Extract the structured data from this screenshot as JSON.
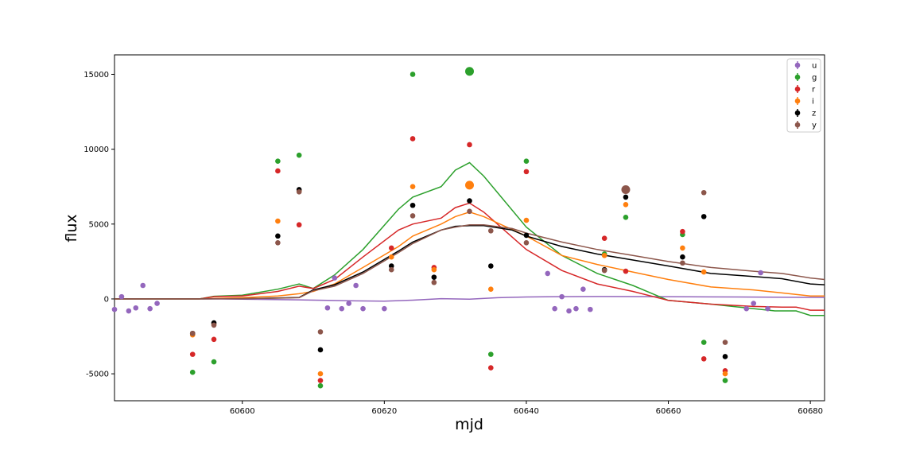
{
  "chart_data": {
    "type": "scatter",
    "title": "",
    "xlabel": "mjd",
    "ylabel": "flux",
    "xlim": [
      60582,
      60682
    ],
    "ylim": [
      -6800,
      16300
    ],
    "xticks": [
      60600,
      60620,
      60640,
      60660,
      60680
    ],
    "yticks": [
      -5000,
      0,
      5000,
      10000,
      15000
    ],
    "grid": false,
    "legend_position": "top-right",
    "series": [
      {
        "name": "u",
        "color": "#9467bd",
        "points": [
          [
            60582,
            -700
          ],
          [
            60583,
            150
          ],
          [
            60584,
            -800
          ],
          [
            60585,
            -600
          ],
          [
            60586,
            900
          ],
          [
            60587,
            -650
          ],
          [
            60588,
            -300
          ],
          [
            60612,
            -600
          ],
          [
            60613,
            1400
          ],
          [
            60614,
            -650
          ],
          [
            60615,
            -300
          ],
          [
            60616,
            900
          ],
          [
            60617,
            -650
          ],
          [
            60620,
            -650
          ],
          [
            60643,
            1700
          ],
          [
            60644,
            -650
          ],
          [
            60645,
            150
          ],
          [
            60646,
            -800
          ],
          [
            60647,
            -650
          ],
          [
            60648,
            650
          ],
          [
            60649,
            -700
          ],
          [
            60671,
            -650
          ],
          [
            60672,
            -300
          ],
          [
            60673,
            1750
          ],
          [
            60674,
            -650
          ]
        ],
        "big_points": [],
        "model": [
          [
            60582,
            0
          ],
          [
            60594,
            0
          ],
          [
            60600,
            -20
          ],
          [
            60608,
            -60
          ],
          [
            60612,
            -100
          ],
          [
            60616,
            -130
          ],
          [
            60620,
            -150
          ],
          [
            60624,
            -80
          ],
          [
            60628,
            20
          ],
          [
            60632,
            -20
          ],
          [
            60636,
            80
          ],
          [
            60640,
            130
          ],
          [
            60644,
            150
          ],
          [
            60650,
            160
          ],
          [
            60660,
            150
          ],
          [
            60670,
            130
          ],
          [
            60682,
            100
          ]
        ]
      },
      {
        "name": "g",
        "color": "#2ca02c",
        "points": [
          [
            60593,
            -4900
          ],
          [
            60596,
            -4200
          ],
          [
            60605,
            9200
          ],
          [
            60608,
            9600
          ],
          [
            60611,
            -5800
          ],
          [
            60624,
            15000
          ],
          [
            60635,
            -3700
          ],
          [
            60640,
            9200
          ],
          [
            60651,
            3000
          ],
          [
            60654,
            5450
          ],
          [
            60662,
            4300
          ],
          [
            60665,
            -2900
          ],
          [
            60668,
            -5450
          ]
        ],
        "big_points": [
          [
            60632,
            15200
          ]
        ],
        "model": [
          [
            60582,
            0
          ],
          [
            60594,
            0
          ],
          [
            60596,
            180
          ],
          [
            60600,
            250
          ],
          [
            60605,
            650
          ],
          [
            60608,
            1000
          ],
          [
            60610,
            700
          ],
          [
            60613,
            1600
          ],
          [
            60617,
            3300
          ],
          [
            60622,
            6000
          ],
          [
            60624,
            6800
          ],
          [
            60628,
            7500
          ],
          [
            60630,
            8600
          ],
          [
            60632,
            9100
          ],
          [
            60634,
            8200
          ],
          [
            60640,
            4800
          ],
          [
            60645,
            2900
          ],
          [
            60650,
            1700
          ],
          [
            60655,
            900
          ],
          [
            60660,
            -100
          ],
          [
            60666,
            -350
          ],
          [
            60675,
            -800
          ],
          [
            60678,
            -800
          ],
          [
            60680,
            -1100
          ],
          [
            60682,
            -1100
          ]
        ]
      },
      {
        "name": "r",
        "color": "#d62728",
        "points": [
          [
            60593,
            -3700
          ],
          [
            60596,
            -2700
          ],
          [
            60605,
            8550
          ],
          [
            60608,
            4950
          ],
          [
            60611,
            -5450
          ],
          [
            60621,
            3400
          ],
          [
            60624,
            10700
          ],
          [
            60627,
            2100
          ],
          [
            60632,
            10300
          ],
          [
            60635,
            -4600
          ],
          [
            60640,
            8500
          ],
          [
            60651,
            4050
          ],
          [
            60654,
            1850
          ],
          [
            60662,
            4500
          ],
          [
            60665,
            -4000
          ],
          [
            60668,
            -4800
          ]
        ],
        "big_points": [],
        "model": [
          [
            60582,
            0
          ],
          [
            60594,
            0
          ],
          [
            60596,
            150
          ],
          [
            60600,
            200
          ],
          [
            60605,
            500
          ],
          [
            60608,
            850
          ],
          [
            60610,
            700
          ],
          [
            60613,
            1300
          ],
          [
            60617,
            2800
          ],
          [
            60622,
            4600
          ],
          [
            60624,
            5000
          ],
          [
            60628,
            5400
          ],
          [
            60630,
            6100
          ],
          [
            60632,
            6400
          ],
          [
            60634,
            5800
          ],
          [
            60640,
            3300
          ],
          [
            60645,
            1900
          ],
          [
            60650,
            1000
          ],
          [
            60655,
            500
          ],
          [
            60660,
            -100
          ],
          [
            60666,
            -350
          ],
          [
            60672,
            -500
          ],
          [
            60676,
            -550
          ],
          [
            60678,
            -550
          ],
          [
            60680,
            -750
          ],
          [
            60682,
            -750
          ]
        ]
      },
      {
        "name": "i",
        "color": "#ff7f0e",
        "points": [
          [
            60593,
            -2400
          ],
          [
            60596,
            -1700
          ],
          [
            60605,
            5200
          ],
          [
            60608,
            7200
          ],
          [
            60611,
            -5000
          ],
          [
            60621,
            2800
          ],
          [
            60624,
            7500
          ],
          [
            60627,
            1950
          ],
          [
            60635,
            650
          ],
          [
            60640,
            5250
          ],
          [
            60651,
            2900
          ],
          [
            60654,
            6300
          ],
          [
            60662,
            3400
          ],
          [
            60665,
            1800
          ],
          [
            60668,
            -5000
          ]
        ],
        "big_points": [
          [
            60632,
            7600
          ]
        ],
        "model": [
          [
            60582,
            0
          ],
          [
            60594,
            0
          ],
          [
            60600,
            80
          ],
          [
            60605,
            200
          ],
          [
            60608,
            350
          ],
          [
            60610,
            500
          ],
          [
            60613,
            1000
          ],
          [
            60617,
            2100
          ],
          [
            60622,
            3500
          ],
          [
            60624,
            4200
          ],
          [
            60628,
            5000
          ],
          [
            60630,
            5500
          ],
          [
            60632,
            5800
          ],
          [
            60634,
            5500
          ],
          [
            60640,
            4200
          ],
          [
            60645,
            2900
          ],
          [
            60650,
            2300
          ],
          [
            60655,
            1800
          ],
          [
            60660,
            1300
          ],
          [
            60666,
            800
          ],
          [
            60672,
            600
          ],
          [
            60676,
            400
          ],
          [
            60680,
            200
          ],
          [
            60682,
            200
          ]
        ]
      },
      {
        "name": "z",
        "color": "#000000",
        "points": [
          [
            60593,
            -2300
          ],
          [
            60596,
            -1600
          ],
          [
            60605,
            4200
          ],
          [
            60608,
            7300
          ],
          [
            60611,
            -3400
          ],
          [
            60621,
            2200
          ],
          [
            60624,
            6250
          ],
          [
            60627,
            1450
          ],
          [
            60632,
            6550
          ],
          [
            60635,
            2200
          ],
          [
            60640,
            4250
          ],
          [
            60651,
            1950
          ],
          [
            60654,
            6800
          ],
          [
            60662,
            2800
          ],
          [
            60665,
            5500
          ],
          [
            60668,
            -3850
          ]
        ],
        "big_points": [],
        "model": [
          [
            60582,
            0
          ],
          [
            60594,
            0
          ],
          [
            60600,
            20
          ],
          [
            60605,
            60
          ],
          [
            60608,
            100
          ],
          [
            60610,
            600
          ],
          [
            60613,
            950
          ],
          [
            60617,
            1800
          ],
          [
            60622,
            3200
          ],
          [
            60624,
            3800
          ],
          [
            60628,
            4600
          ],
          [
            60630,
            4850
          ],
          [
            60632,
            4900
          ],
          [
            60634,
            4900
          ],
          [
            60638,
            4600
          ],
          [
            60640,
            4200
          ],
          [
            60645,
            3500
          ],
          [
            60650,
            3000
          ],
          [
            60655,
            2600
          ],
          [
            60660,
            2200
          ],
          [
            60666,
            1700
          ],
          [
            60672,
            1500
          ],
          [
            60676,
            1350
          ],
          [
            60680,
            1000
          ],
          [
            60682,
            950
          ]
        ]
      },
      {
        "name": "y",
        "color": "#8c564b",
        "points": [
          [
            60593,
            -2300
          ],
          [
            60596,
            -1750
          ],
          [
            60605,
            3750
          ],
          [
            60608,
            7150
          ],
          [
            60611,
            -2200
          ],
          [
            60621,
            1950
          ],
          [
            60624,
            5550
          ],
          [
            60627,
            1100
          ],
          [
            60632,
            5850
          ],
          [
            60635,
            4550
          ],
          [
            60640,
            3750
          ],
          [
            60651,
            1900
          ],
          [
            60662,
            2400
          ],
          [
            60665,
            7100
          ],
          [
            60668,
            -2900
          ]
        ],
        "big_points": [
          [
            60654,
            7300
          ]
        ],
        "model": [
          [
            60582,
            0
          ],
          [
            60594,
            0
          ],
          [
            60600,
            20
          ],
          [
            60605,
            50
          ],
          [
            60608,
            80
          ],
          [
            60610,
            550
          ],
          [
            60613,
            850
          ],
          [
            60617,
            1700
          ],
          [
            60622,
            3100
          ],
          [
            60624,
            3700
          ],
          [
            60628,
            4600
          ],
          [
            60630,
            4800
          ],
          [
            60632,
            4950
          ],
          [
            60634,
            4950
          ],
          [
            60638,
            4700
          ],
          [
            60640,
            4400
          ],
          [
            60645,
            3800
          ],
          [
            60650,
            3300
          ],
          [
            60655,
            2900
          ],
          [
            60660,
            2500
          ],
          [
            60666,
            2100
          ],
          [
            60672,
            1850
          ],
          [
            60676,
            1700
          ],
          [
            60680,
            1400
          ],
          [
            60682,
            1300
          ]
        ]
      }
    ]
  }
}
